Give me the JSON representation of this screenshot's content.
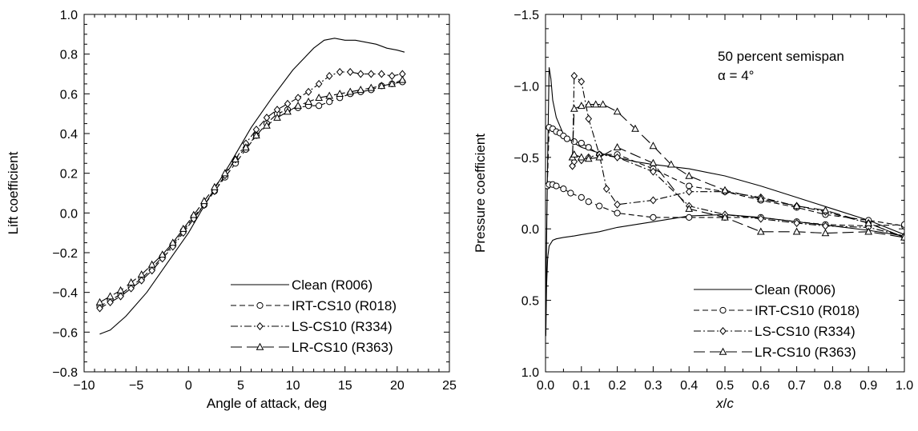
{
  "chart_data": [
    {
      "type": "line",
      "title": "",
      "xlabel": "Angle of attack, deg",
      "ylabel": "Lift coefficient",
      "xlim": [
        -10,
        25
      ],
      "ylim": [
        -0.8,
        1.0
      ],
      "xticks": [
        -10,
        -5,
        0,
        5,
        10,
        15,
        20,
        25
      ],
      "xtick_labels": [
        "−10",
        "−5",
        "0",
        "5",
        "10",
        "15",
        "20",
        "25"
      ],
      "yticks": [
        -0.8,
        -0.6,
        -0.4,
        -0.2,
        0.0,
        0.2,
        0.4,
        0.6,
        0.8,
        1.0
      ],
      "ytick_labels": [
        "−0.8",
        "−0.6",
        "−0.4",
        "−0.2",
        "0.0",
        "0.2",
        "0.4",
        "0.6",
        "0.8",
        "1.0"
      ],
      "y_inverted": false,
      "grid": false,
      "legend_position": "bottom-right",
      "series": [
        {
          "name": "Clean (R006)",
          "style": "solid",
          "marker": "none",
          "x": [
            -8.5,
            -7.5,
            -6,
            -4,
            -2,
            0,
            2,
            4,
            6,
            8,
            10,
            12,
            13,
            14,
            15,
            16,
            17,
            18,
            19,
            20,
            20.7
          ],
          "y": [
            -0.61,
            -0.59,
            -0.52,
            -0.4,
            -0.25,
            -0.1,
            0.08,
            0.25,
            0.43,
            0.58,
            0.72,
            0.83,
            0.87,
            0.88,
            0.87,
            0.87,
            0.86,
            0.85,
            0.83,
            0.82,
            0.81
          ]
        },
        {
          "name": "IRT-CS10 (R018)",
          "style": "dashed",
          "marker": "circle",
          "x": [
            -8.5,
            -7.5,
            -6.5,
            -5.5,
            -4.5,
            -3.5,
            -2.5,
            -1.5,
            -0.5,
            0.5,
            1.5,
            2.5,
            3.5,
            4.5,
            5.5,
            6.5,
            7.5,
            8.5,
            9.5,
            10.5,
            11.5,
            12.5,
            13.5,
            14.5,
            15.5,
            16.5,
            17.5,
            18.5,
            19.5,
            20.5
          ],
          "y": [
            -0.47,
            -0.44,
            -0.41,
            -0.37,
            -0.33,
            -0.28,
            -0.22,
            -0.16,
            -0.09,
            -0.02,
            0.04,
            0.11,
            0.18,
            0.25,
            0.32,
            0.39,
            0.45,
            0.5,
            0.52,
            0.53,
            0.54,
            0.54,
            0.56,
            0.58,
            0.6,
            0.61,
            0.62,
            0.64,
            0.65,
            0.66
          ]
        },
        {
          "name": "LS-CS10  (R334)",
          "style": "dash-dot",
          "marker": "diamond",
          "x": [
            -8.5,
            -7.5,
            -6.5,
            -5.5,
            -4.5,
            -3.5,
            -2.5,
            -1.5,
            -0.5,
            0.5,
            1.5,
            2.5,
            3.5,
            4.5,
            5.5,
            6.5,
            7.5,
            8.5,
            9.5,
            10.5,
            11.5,
            12.5,
            13.5,
            14.5,
            15.5,
            16.5,
            17.5,
            18.5,
            19.5,
            20.5
          ],
          "y": [
            -0.48,
            -0.45,
            -0.42,
            -0.38,
            -0.34,
            -0.29,
            -0.23,
            -0.17,
            -0.1,
            -0.03,
            0.04,
            0.11,
            0.19,
            0.27,
            0.35,
            0.42,
            0.48,
            0.52,
            0.55,
            0.58,
            0.61,
            0.65,
            0.69,
            0.71,
            0.71,
            0.7,
            0.7,
            0.7,
            0.69,
            0.7
          ]
        },
        {
          "name": "LR-CS10  (R363)",
          "style": "long-dash",
          "marker": "triangle",
          "x": [
            -8.5,
            -7.5,
            -6.5,
            -5.5,
            -4.5,
            -3.5,
            -2.5,
            -1.5,
            -0.5,
            0.5,
            1.5,
            2.5,
            3.5,
            4.5,
            5.5,
            6.5,
            7.5,
            8.5,
            9.5,
            10.5,
            11.5,
            12.5,
            13.5,
            14.5,
            15.5,
            16.5,
            17.5,
            18.5,
            19.5,
            20.5
          ],
          "y": [
            -0.45,
            -0.42,
            -0.39,
            -0.35,
            -0.31,
            -0.26,
            -0.21,
            -0.15,
            -0.08,
            -0.01,
            0.06,
            0.13,
            0.2,
            0.27,
            0.33,
            0.39,
            0.44,
            0.48,
            0.51,
            0.54,
            0.56,
            0.58,
            0.59,
            0.6,
            0.61,
            0.62,
            0.63,
            0.64,
            0.65,
            0.67
          ]
        }
      ]
    },
    {
      "type": "line",
      "title": "",
      "xlabel_italic": "x",
      "xlabel_rest": "/",
      "xlabel_italic2": "c",
      "ylabel": "Pressure coefficient",
      "xlim": [
        0.0,
        1.0
      ],
      "ylim": [
        -1.5,
        1.0
      ],
      "xticks": [
        0.0,
        0.1,
        0.2,
        0.3,
        0.4,
        0.5,
        0.6,
        0.7,
        0.8,
        0.9,
        1.0
      ],
      "xtick_labels": [
        "0.0",
        "0.1",
        "0.2",
        "0.3",
        "0.4",
        "0.5",
        "0.6",
        "0.7",
        "0.8",
        "0.9",
        "1.0"
      ],
      "yticks": [
        -1.5,
        -1.0,
        -0.5,
        0.0,
        0.5,
        1.0
      ],
      "ytick_labels": [
        "−1.5",
        "−1.0",
        "−0.5",
        "0.0",
        "0.5",
        "1.0"
      ],
      "y_inverted": true,
      "grid": false,
      "legend_position": "bottom-right",
      "annotation_line1": "50 percent semispan",
      "annotation_line2": "α = 4°",
      "series": [
        {
          "name": "Clean (R006)",
          "style": "solid",
          "marker": "none",
          "x": [
            0.0,
            0.003,
            0.006,
            0.01,
            0.015,
            0.02,
            0.03,
            0.05,
            0.08,
            0.1,
            0.15,
            0.2,
            0.25,
            0.3,
            0.4,
            0.5,
            0.6,
            0.7,
            0.8,
            0.9,
            1.0,
            null,
            0.001,
            0.003,
            0.006,
            0.01,
            0.02,
            0.03,
            0.05,
            0.08,
            0.1,
            0.15,
            0.2,
            0.3,
            0.4,
            0.5,
            0.6,
            0.7,
            0.8,
            0.9,
            1.0
          ],
          "y": [
            0.75,
            0.1,
            -0.5,
            -1.13,
            -1.05,
            -0.9,
            -0.78,
            -0.66,
            -0.6,
            -0.57,
            -0.53,
            -0.5,
            -0.47,
            -0.45,
            -0.42,
            -0.37,
            -0.3,
            -0.22,
            -0.14,
            -0.06,
            0.04,
            null,
            0.75,
            0.4,
            0.2,
            0.12,
            0.08,
            0.07,
            0.06,
            0.05,
            0.04,
            0.02,
            -0.01,
            -0.05,
            -0.09,
            -0.1,
            -0.08,
            -0.05,
            -0.02,
            0.01,
            0.05
          ]
        },
        {
          "name": "IRT-CS10 (R018)",
          "style": "dashed",
          "marker": "circle",
          "x": [
            0.005,
            0.01,
            0.02,
            0.03,
            0.04,
            0.05,
            0.06,
            0.08,
            0.1,
            0.12,
            0.15,
            0.2,
            0.3,
            0.4,
            0.5,
            0.6,
            0.7,
            0.78,
            0.9,
            1.0,
            null,
            0.005,
            0.01,
            0.02,
            0.03,
            0.05,
            0.07,
            0.1,
            0.12,
            0.15,
            0.2,
            0.3,
            0.4,
            0.5,
            0.6,
            0.7,
            0.78,
            0.9,
            1.0
          ],
          "y": [
            -0.3,
            -0.71,
            -0.7,
            -0.68,
            -0.67,
            -0.65,
            -0.63,
            -0.61,
            -0.6,
            -0.57,
            -0.52,
            -0.52,
            -0.42,
            -0.3,
            -0.26,
            -0.2,
            -0.15,
            -0.1,
            -0.06,
            -0.02,
            null,
            -0.3,
            -0.31,
            -0.31,
            -0.3,
            -0.28,
            -0.25,
            -0.22,
            -0.19,
            -0.16,
            -0.11,
            -0.08,
            -0.08,
            -0.08,
            -0.08,
            -0.05,
            -0.03,
            -0.02,
            -0.03
          ]
        },
        {
          "name": "LS-CS10  (R334)",
          "style": "dash-dot",
          "marker": "diamond",
          "x": [
            0.075,
            0.08,
            0.1,
            0.12,
            0.15,
            0.17,
            0.2,
            0.3,
            0.4,
            0.5,
            0.6,
            0.7,
            0.78,
            0.9,
            1.0,
            null,
            0.075,
            0.08,
            0.1,
            0.12,
            0.15,
            0.2,
            0.3,
            0.4,
            0.5,
            0.6,
            0.7,
            0.78,
            0.9,
            1.0
          ],
          "y": [
            -0.44,
            -1.07,
            -1.03,
            -0.77,
            -0.52,
            -0.28,
            -0.17,
            -0.2,
            -0.26,
            -0.26,
            -0.22,
            -0.16,
            -0.12,
            -0.04,
            0.06,
            null,
            -0.44,
            -0.47,
            -0.48,
            -0.5,
            -0.52,
            -0.5,
            -0.4,
            -0.16,
            -0.1,
            -0.07,
            -0.04,
            -0.02,
            -0.01,
            0.05
          ]
        },
        {
          "name": "LR-CS10  (R363)",
          "style": "long-dash",
          "marker": "triangle",
          "x": [
            0.075,
            0.08,
            0.1,
            0.12,
            0.14,
            0.16,
            0.2,
            0.25,
            0.3,
            0.35,
            0.4,
            0.5,
            0.6,
            0.7,
            0.78,
            0.9,
            1.0,
            null,
            0.075,
            0.08,
            0.1,
            0.12,
            0.15,
            0.2,
            0.3,
            0.4,
            0.5,
            0.6,
            0.7,
            0.78,
            0.9,
            1.0
          ],
          "y": [
            -0.5,
            -0.84,
            -0.86,
            -0.87,
            -0.87,
            -0.87,
            -0.82,
            -0.7,
            -0.58,
            -0.45,
            -0.37,
            -0.27,
            -0.21,
            -0.16,
            -0.13,
            -0.04,
            0.06,
            null,
            -0.5,
            -0.52,
            -0.5,
            -0.49,
            -0.5,
            -0.57,
            -0.46,
            -0.14,
            -0.08,
            0.02,
            0.02,
            0.03,
            0.02,
            0.06
          ]
        }
      ]
    }
  ]
}
